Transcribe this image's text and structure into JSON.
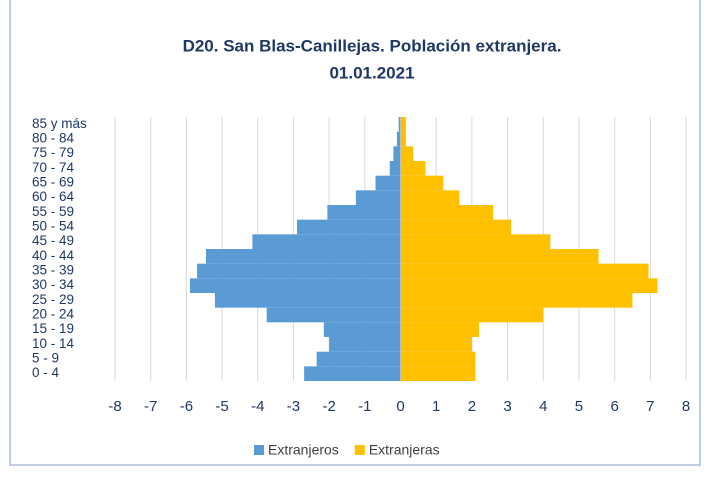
{
  "chart_data": {
    "type": "pyramid",
    "title": "D20. San Blas-Canillejas. Población extranjera.",
    "subtitle": "01.01.2021",
    "categories": [
      "0 - 4",
      "5 - 9",
      "10 - 14",
      "15 - 19",
      "20 - 24",
      "25 - 29",
      "30 - 34",
      "35 - 39",
      "40 - 44",
      "45 - 49",
      "50 - 54",
      "55 - 59",
      "60 - 64",
      "65 - 69",
      "70 - 74",
      "75 - 79",
      "80 - 84",
      "85 y más"
    ],
    "series": [
      {
        "name": "Extranjeros",
        "color": "#5b9bd5",
        "values": [
          -2.7,
          -2.35,
          -2.0,
          -2.15,
          -3.75,
          -5.2,
          -5.9,
          -5.7,
          -5.45,
          -4.15,
          -2.9,
          -2.05,
          -1.25,
          -0.7,
          -0.3,
          -0.2,
          -0.1,
          -0.05
        ]
      },
      {
        "name": "Extranjeras",
        "color": "#ffc000",
        "values": [
          2.1,
          2.1,
          2.0,
          2.2,
          4.0,
          6.5,
          7.2,
          6.95,
          5.55,
          4.2,
          3.1,
          2.6,
          1.65,
          1.2,
          0.7,
          0.35,
          0.15,
          0.15
        ]
      }
    ],
    "xlim": [
      -8,
      8
    ],
    "xticks": [
      -8,
      -7,
      -6,
      -5,
      -4,
      -3,
      -2,
      -1,
      0,
      1,
      2,
      3,
      4,
      5,
      6,
      7,
      8
    ],
    "grid": true,
    "legend": "bottom"
  }
}
